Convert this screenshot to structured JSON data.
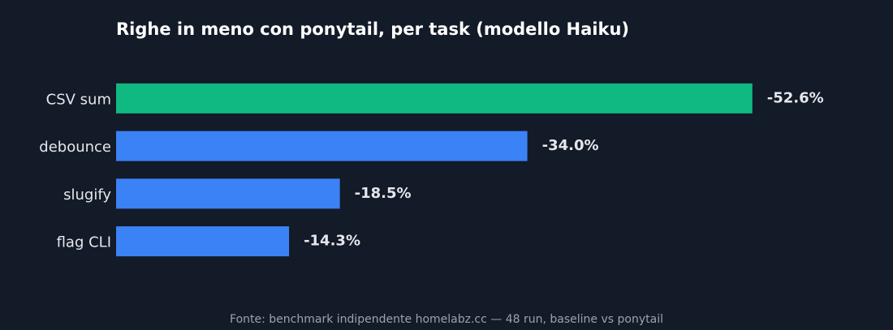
{
  "chart_data": {
    "type": "bar",
    "orientation": "horizontal",
    "title": "Righe in meno con ponytail, per task (modello Haiku)",
    "categories": [
      "CSV sum",
      "debounce",
      "slugify",
      "flag CLI"
    ],
    "values": [
      -52.6,
      -34.0,
      -18.5,
      -14.3
    ],
    "value_labels": [
      "-52.6%",
      "-34.0%",
      "-18.5%",
      "-14.3%"
    ],
    "colors": [
      "#10b981",
      "#3b82f6",
      "#3b82f6",
      "#3b82f6"
    ],
    "xlim": [
      0,
      -60
    ],
    "source": "Fonte: benchmark indipendente homelabz.cc — 48 run, baseline vs ponytail"
  }
}
